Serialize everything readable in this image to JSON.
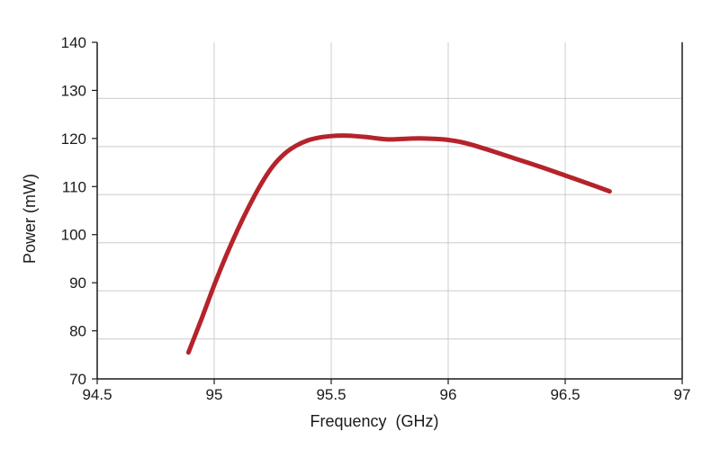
{
  "chart_data": {
    "type": "line",
    "xlabel": "Frequency  (GHz)",
    "ylabel": "Power (mW)",
    "xlim": [
      94.5,
      97
    ],
    "ylim": [
      70,
      140
    ],
    "x_ticks": [
      94.5,
      95,
      95.5,
      96,
      96.5,
      97
    ],
    "x_tick_labels": [
      "94.5",
      "95",
      "95.5",
      "96",
      "96.5",
      "97"
    ],
    "y_ticks": [
      70,
      80,
      90,
      100,
      110,
      120,
      130,
      140
    ],
    "y_tick_labels": [
      "70",
      "80",
      "90",
      "100",
      "110",
      "120",
      "130",
      "140"
    ],
    "grid": true,
    "colors": {
      "line": "#b5232b",
      "grid": "#cccccc",
      "axis": "#1a1a1a"
    },
    "series": [
      {
        "x": [
          94.89,
          94.95,
          95.0,
          95.05,
          95.1,
          95.15,
          95.2,
          95.25,
          95.3,
          95.35,
          95.4,
          95.45,
          95.5,
          95.55,
          95.6,
          95.65,
          95.7,
          95.75,
          95.8,
          95.85,
          95.9,
          95.95,
          96.0,
          96.05,
          96.1,
          96.2,
          96.3,
          96.4,
          96.5,
          96.6,
          96.69
        ],
        "y": [
          75.5,
          83.0,
          89.5,
          95.5,
          101.0,
          106.0,
          110.5,
          114.2,
          116.8,
          118.5,
          119.6,
          120.2,
          120.5,
          120.6,
          120.5,
          120.3,
          120.0,
          119.8,
          119.9,
          120.0,
          120.0,
          119.9,
          119.7,
          119.3,
          118.7,
          117.2,
          115.6,
          114.0,
          112.3,
          110.6,
          109.0
        ]
      }
    ]
  }
}
